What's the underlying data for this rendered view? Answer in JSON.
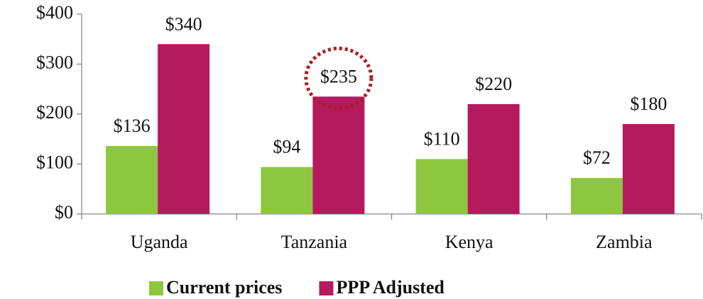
{
  "chart_data": {
    "type": "bar",
    "categories": [
      "Uganda",
      "Tanzania",
      "Kenya",
      "Zambia"
    ],
    "series": [
      {
        "name": "Current prices",
        "color": "#8dc63f",
        "values": [
          136,
          94,
          110,
          72
        ],
        "value_labels": [
          "$136",
          "$94",
          "$110",
          "$72"
        ]
      },
      {
        "name": "PPP Adjusted",
        "color": "#b5195e",
        "values": [
          340,
          235,
          220,
          180
        ],
        "value_labels": [
          "$340",
          "$235",
          "$220",
          "$180"
        ]
      }
    ],
    "ylim": [
      0,
      400
    ],
    "yticks": [
      {
        "value": 0,
        "label": "$0"
      },
      {
        "value": 100,
        "label": "$100"
      },
      {
        "value": 200,
        "label": "$200"
      },
      {
        "value": 300,
        "label": "$300"
      },
      {
        "value": 400,
        "label": "$400"
      }
    ],
    "legend": "bottom"
  }
}
